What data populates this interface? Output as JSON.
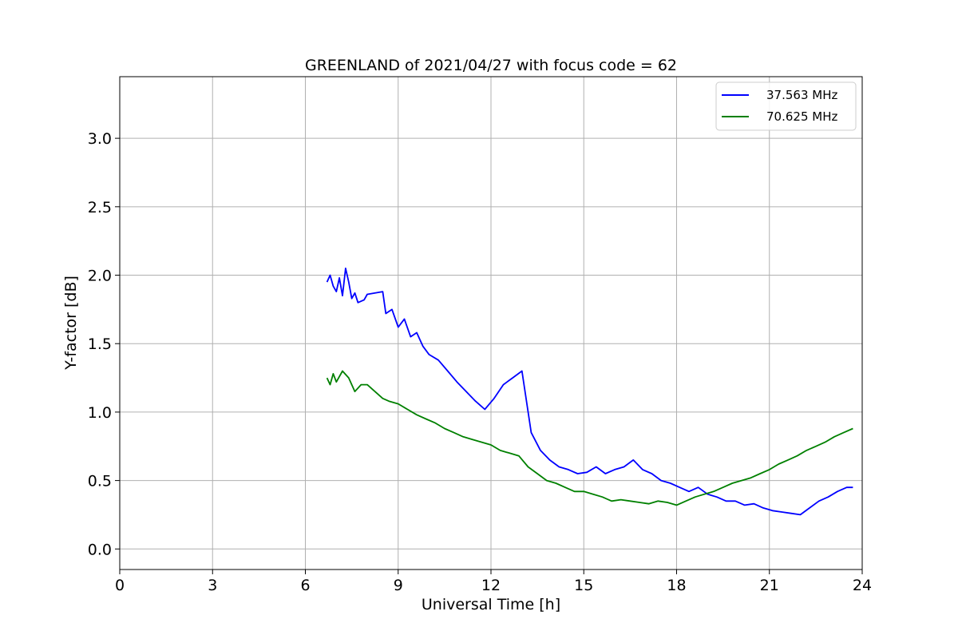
{
  "chart_data": {
    "type": "line",
    "title": "GREENLAND of 2021/04/27 with focus code = 62",
    "xlabel": "Universal Time [h]",
    "ylabel": "Y-factor [dB]",
    "xlim": [
      0,
      24
    ],
    "ylim": [
      -0.15,
      3.45
    ],
    "xticks": [
      0,
      3,
      6,
      9,
      12,
      15,
      18,
      21,
      24
    ],
    "xtick_labels": [
      "0",
      "3",
      "6",
      "9",
      "12",
      "15",
      "18",
      "21",
      "24"
    ],
    "yticks": [
      0.0,
      0.5,
      1.0,
      1.5,
      2.0,
      2.5,
      3.0
    ],
    "ytick_labels": [
      "0.0",
      "0.5",
      "1.0",
      "1.5",
      "2.0",
      "2.5",
      "3.0"
    ],
    "grid": true,
    "legend_position": "top-right",
    "series": [
      {
        "name": "37.563 MHz",
        "color": "#0000ff",
        "x": [
          6.7,
          6.8,
          6.9,
          7.0,
          7.1,
          7.2,
          7.3,
          7.4,
          7.5,
          7.6,
          7.7,
          7.9,
          8.0,
          8.5,
          8.6,
          8.8,
          9.0,
          9.2,
          9.4,
          9.6,
          9.8,
          10.0,
          10.3,
          10.6,
          10.9,
          11.2,
          11.5,
          11.8,
          12.1,
          12.4,
          12.7,
          13.0,
          13.3,
          13.6,
          13.9,
          14.2,
          14.5,
          14.8,
          15.1,
          15.4,
          15.7,
          16.0,
          16.3,
          16.6,
          16.9,
          17.2,
          17.5,
          17.8,
          18.1,
          18.4,
          18.7,
          19.0,
          19.3,
          19.6,
          19.9,
          20.2,
          20.5,
          20.8,
          21.1,
          21.4,
          21.7,
          22.0,
          22.3,
          22.6,
          22.9,
          23.2,
          23.5,
          23.7
        ],
        "y": [
          1.95,
          2.0,
          1.92,
          1.88,
          1.98,
          1.85,
          2.05,
          1.95,
          1.83,
          1.87,
          1.8,
          1.82,
          1.86,
          1.88,
          1.72,
          1.75,
          1.62,
          1.68,
          1.55,
          1.58,
          1.48,
          1.42,
          1.38,
          1.3,
          1.22,
          1.15,
          1.08,
          1.02,
          1.1,
          1.2,
          1.25,
          1.3,
          0.85,
          0.72,
          0.65,
          0.6,
          0.58,
          0.55,
          0.56,
          0.6,
          0.55,
          0.58,
          0.6,
          0.65,
          0.58,
          0.55,
          0.5,
          0.48,
          0.45,
          0.42,
          0.45,
          0.4,
          0.38,
          0.35,
          0.35,
          0.32,
          0.33,
          0.3,
          0.28,
          0.27,
          0.26,
          0.25,
          0.3,
          0.35,
          0.38,
          0.42,
          0.45,
          0.45
        ]
      },
      {
        "name": "70.625 MHz",
        "color": "#008000",
        "x": [
          6.7,
          6.8,
          6.9,
          7.0,
          7.2,
          7.4,
          7.6,
          7.8,
          8.0,
          8.5,
          8.7,
          9.0,
          9.3,
          9.6,
          9.9,
          10.2,
          10.5,
          10.8,
          11.1,
          11.4,
          11.7,
          12.0,
          12.3,
          12.6,
          12.9,
          13.2,
          13.5,
          13.8,
          14.1,
          14.4,
          14.7,
          15.0,
          15.3,
          15.6,
          15.9,
          16.2,
          16.5,
          16.8,
          17.1,
          17.4,
          17.7,
          18.0,
          18.3,
          18.6,
          18.9,
          19.2,
          19.5,
          19.8,
          20.1,
          20.4,
          20.7,
          21.0,
          21.3,
          21.6,
          21.9,
          22.2,
          22.5,
          22.8,
          23.1,
          23.4,
          23.7
        ],
        "y": [
          1.25,
          1.2,
          1.28,
          1.22,
          1.3,
          1.25,
          1.15,
          1.2,
          1.2,
          1.1,
          1.08,
          1.06,
          1.02,
          0.98,
          0.95,
          0.92,
          0.88,
          0.85,
          0.82,
          0.8,
          0.78,
          0.76,
          0.72,
          0.7,
          0.68,
          0.6,
          0.55,
          0.5,
          0.48,
          0.45,
          0.42,
          0.42,
          0.4,
          0.38,
          0.35,
          0.36,
          0.35,
          0.34,
          0.33,
          0.35,
          0.34,
          0.32,
          0.35,
          0.38,
          0.4,
          0.42,
          0.45,
          0.48,
          0.5,
          0.52,
          0.55,
          0.58,
          0.62,
          0.65,
          0.68,
          0.72,
          0.75,
          0.78,
          0.82,
          0.85,
          0.88
        ]
      }
    ]
  }
}
